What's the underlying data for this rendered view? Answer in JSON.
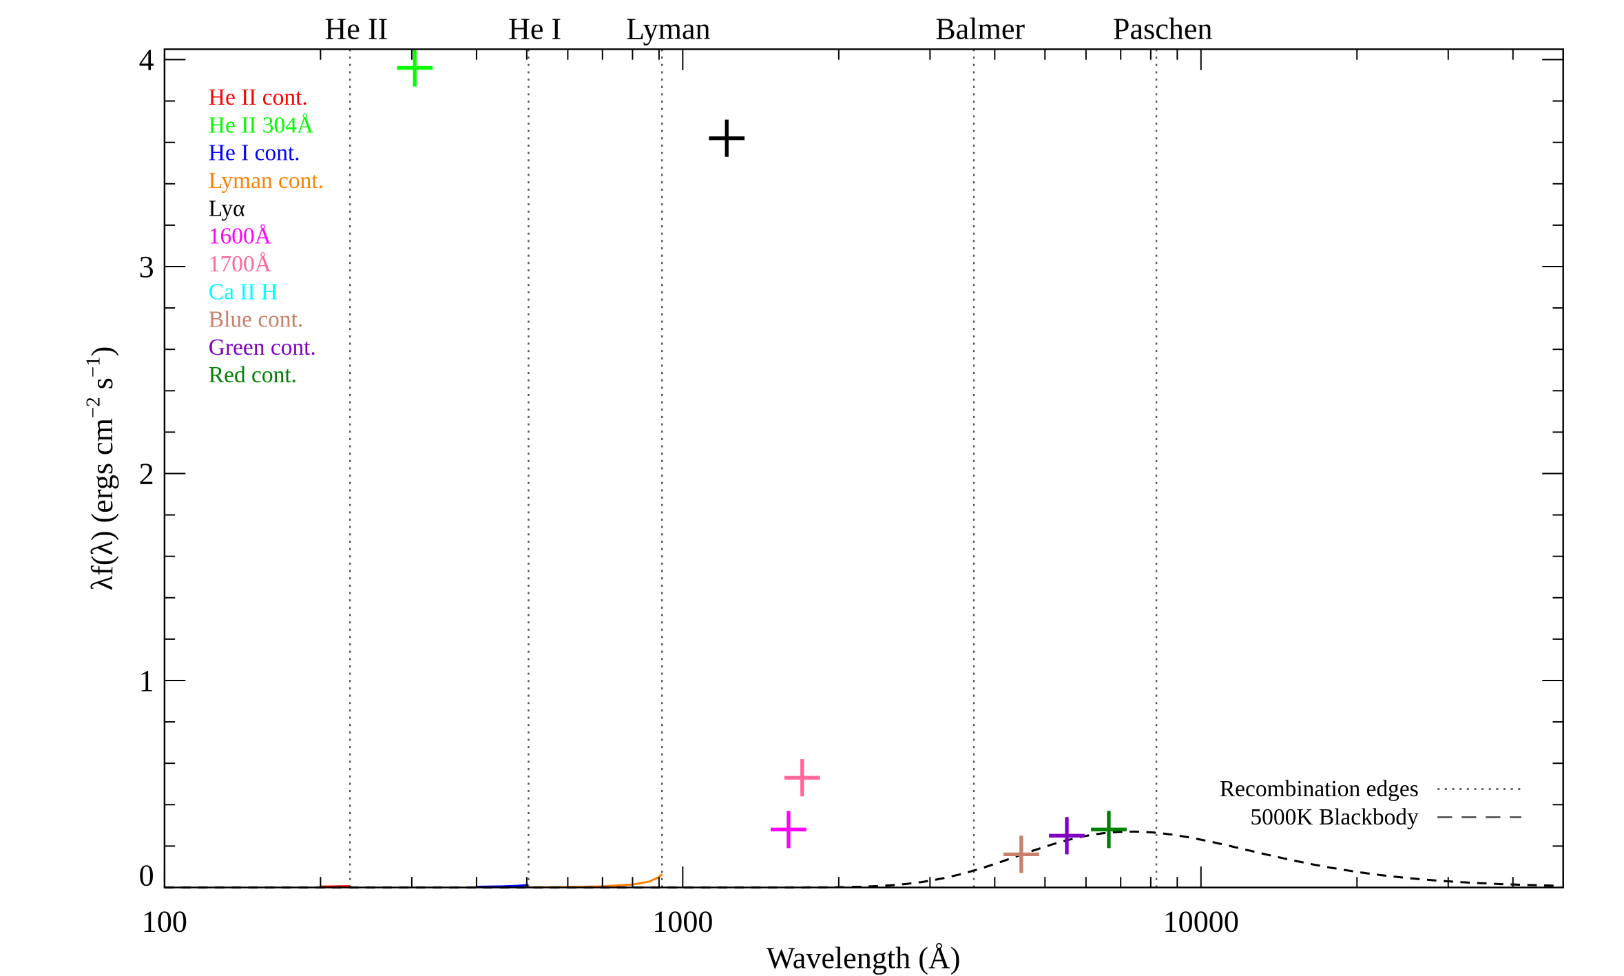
{
  "chart_data": {
    "type": "scatter",
    "title": "",
    "xlabel": "Wavelength (Å)",
    "ylabel_parts": [
      "λf(λ) (ergs cm",
      "−2",
      " s",
      "−1",
      ")"
    ],
    "xscale": "log",
    "xlim": [
      100,
      50000
    ],
    "ylim": [
      0,
      4.05
    ],
    "xticks": [
      100,
      1000,
      10000
    ],
    "xtick_labels": [
      "100",
      "1000",
      "10000"
    ],
    "yticks": [
      0,
      1,
      2,
      3,
      4
    ],
    "ytick_labels": [
      "0",
      "1",
      "2",
      "3",
      "4"
    ],
    "grid": false,
    "edges": [
      {
        "label": "He II",
        "wavelength": 228
      },
      {
        "label": "He I",
        "wavelength": 504
      },
      {
        "label": "Lyman",
        "wavelength": 912
      },
      {
        "label": "Balmer",
        "wavelength": 3646
      },
      {
        "label": "Paschen",
        "wavelength": 8204
      }
    ],
    "series": [
      {
        "name": "He II cont.",
        "color": "#ff0000",
        "kind": "curve",
        "points": [
          [
            200,
            0.004
          ],
          [
            215,
            0.005
          ],
          [
            228,
            0.006
          ]
        ]
      },
      {
        "name": "He II 304Å",
        "color": "#00ff00",
        "kind": "point",
        "x": 304,
        "y": 3.96,
        "yerr": 0.09
      },
      {
        "name": "He I cont.",
        "color": "#0000ff",
        "kind": "curve",
        "points": [
          [
            400,
            0.003
          ],
          [
            450,
            0.005
          ],
          [
            480,
            0.008
          ],
          [
            504,
            0.012
          ]
        ]
      },
      {
        "name": "Lyman cont.",
        "color": "#ff7f00",
        "kind": "curve",
        "points": [
          [
            504,
            0.001
          ],
          [
            600,
            0.002
          ],
          [
            700,
            0.005
          ],
          [
            800,
            0.014
          ],
          [
            860,
            0.028
          ],
          [
            900,
            0.05
          ],
          [
            912,
            0.065
          ]
        ]
      },
      {
        "name": "Lyα",
        "color": "#000000",
        "kind": "point",
        "x": 1216,
        "y": 3.62,
        "yerr": 0.09
      },
      {
        "name": "1600Å",
        "color": "#ff00ff",
        "kind": "point",
        "x": 1600,
        "y": 0.28,
        "yerr": 0.09
      },
      {
        "name": "1700Å",
        "color": "#ff6699",
        "kind": "point",
        "x": 1700,
        "y": 0.53,
        "yerr": 0.09
      },
      {
        "name": "Ca II H",
        "color": "#00ffff",
        "kind": "none"
      },
      {
        "name": "Blue cont.",
        "color": "#c8806a",
        "kind": "point",
        "x": 4500,
        "y": 0.16,
        "yerr": 0.09
      },
      {
        "name": "Green cont.",
        "color": "#7f00bf",
        "kind": "point",
        "x": 5510,
        "y": 0.25,
        "yerr": 0.09
      },
      {
        "name": "Red cont.",
        "color": "#008000",
        "kind": "point",
        "x": 6640,
        "y": 0.28,
        "yerr": 0.09
      }
    ],
    "blackbody": {
      "label": "5000K Blackbody",
      "temperature_K": 5000,
      "peak": 0.27
    },
    "legend_lines": [
      {
        "label": "Recombination edges",
        "style": "dotted"
      },
      {
        "label": "5000K Blackbody",
        "style": "dashed"
      }
    ],
    "legend_placement": "top-left (series names), bottom-right (line styles)"
  }
}
